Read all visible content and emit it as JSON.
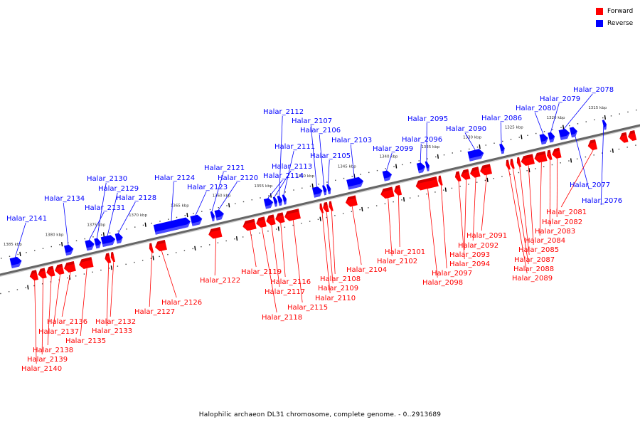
{
  "legend": {
    "items": [
      {
        "label": "Forward",
        "color": "#ff0000"
      },
      {
        "label": "Reverse",
        "color": "#0000ff"
      }
    ]
  },
  "caption": "Halophilic archaeon DL31 chromosome, complete genome. - 0..2913689",
  "colors": {
    "forward": "#ff0000",
    "forward_dark": "#b00000",
    "reverse": "#0000ff",
    "reverse_dark": "#0000a0",
    "axis": "#555555"
  },
  "ticks": [
    {
      "kbp": 1385,
      "label": "1385 kbp"
    },
    {
      "kbp": 1380,
      "label": "1380 kbp"
    },
    {
      "kbp": 1375,
      "label": "1375 kbp"
    },
    {
      "kbp": 1370,
      "label": "1370 kbp"
    },
    {
      "kbp": 1365,
      "label": "1365 kbp"
    },
    {
      "kbp": 1360,
      "label": "1360 kbp"
    },
    {
      "kbp": 1355,
      "label": "1355 kbp"
    },
    {
      "kbp": 1350,
      "label": "1350 kbp"
    },
    {
      "kbp": 1345,
      "label": "1345 kbp"
    },
    {
      "kbp": 1340,
      "label": "1340 kbp"
    },
    {
      "kbp": 1335,
      "label": "1335 kbp"
    },
    {
      "kbp": 1330,
      "label": "1330 kbp"
    },
    {
      "kbp": 1325,
      "label": "1325 kbp"
    },
    {
      "kbp": 1320,
      "label": "1320 kbp"
    },
    {
      "kbp": 1315,
      "label": "1315 kbp"
    }
  ],
  "genes": [
    {
      "name": "Halar_2141",
      "strand": "reverse",
      "start": 1385.6,
      "end": 1384.3
    },
    {
      "name": "Halar_2134",
      "strand": "reverse",
      "start": 1379.1,
      "end": 1378.1
    },
    {
      "name": "Halar_2131",
      "strand": "reverse",
      "start": 1376.6,
      "end": 1375.6
    },
    {
      "name": "Halar_2130",
      "strand": "reverse",
      "start": 1375.5,
      "end": 1374.8
    },
    {
      "name": "Halar_2129",
      "strand": "reverse",
      "start": 1374.7,
      "end": 1373.1
    },
    {
      "name": "Halar_2128",
      "strand": "reverse",
      "start": 1373.0,
      "end": 1372.2
    },
    {
      "name": "Halar_2124",
      "strand": "reverse",
      "start": 1368.4,
      "end": 1364.1
    },
    {
      "name": "Halar_2123",
      "strand": "reverse",
      "start": 1364.0,
      "end": 1362.7
    },
    {
      "name": "Halar_2121",
      "strand": "reverse",
      "start": 1361.6,
      "end": 1361.2
    },
    {
      "name": "Halar_2120",
      "strand": "reverse",
      "start": 1361.1,
      "end": 1360.1
    },
    {
      "name": "Halar_2114",
      "strand": "reverse",
      "start": 1355.2,
      "end": 1354.2
    },
    {
      "name": "Halar_2113",
      "strand": "reverse",
      "start": 1354.1,
      "end": 1353.7
    },
    {
      "name": "Halar_2112",
      "strand": "reverse",
      "start": 1353.6,
      "end": 1353.1
    },
    {
      "name": "Halar_2111",
      "strand": "reverse",
      "start": 1353.0,
      "end": 1352.6
    },
    {
      "name": "Halar_2107",
      "strand": "reverse",
      "start": 1349.4,
      "end": 1348.3
    },
    {
      "name": "Halar_2106",
      "strand": "reverse",
      "start": 1348.2,
      "end": 1347.8
    },
    {
      "name": "Halar_2105",
      "strand": "reverse",
      "start": 1347.7,
      "end": 1347.3
    },
    {
      "name": "Halar_2103",
      "strand": "reverse",
      "start": 1345.3,
      "end": 1343.4
    },
    {
      "name": "Halar_2099",
      "strand": "reverse",
      "start": 1341.0,
      "end": 1340.0
    },
    {
      "name": "Halar_2096",
      "strand": "reverse",
      "start": 1336.9,
      "end": 1336.0
    },
    {
      "name": "Halar_2095",
      "strand": "reverse",
      "start": 1335.9,
      "end": 1335.5
    },
    {
      "name": "Halar_2090",
      "strand": "reverse",
      "start": 1330.8,
      "end": 1329.0
    },
    {
      "name": "Halar_2086",
      "strand": "reverse",
      "start": 1327.0,
      "end": 1326.5
    },
    {
      "name": "Halar_2080",
      "strand": "reverse",
      "start": 1322.2,
      "end": 1321.3
    },
    {
      "name": "Halar_2079",
      "strand": "reverse",
      "start": 1321.2,
      "end": 1320.5
    },
    {
      "name": "Halar_2078",
      "strand": "reverse",
      "start": 1319.9,
      "end": 1318.7
    },
    {
      "name": "Halar_2077",
      "strand": "reverse",
      "start": 1318.6,
      "end": 1317.8
    },
    {
      "name": "Halar_2076",
      "strand": "reverse",
      "start": 1314.7,
      "end": 1314.3
    },
    {
      "name": "Halar_2140",
      "strand": "forward",
      "start": 1383.8,
      "end": 1382.9
    },
    {
      "name": "Halar_2139",
      "strand": "forward",
      "start": 1382.8,
      "end": 1381.9
    },
    {
      "name": "Halar_2138",
      "strand": "forward",
      "start": 1381.8,
      "end": 1380.9
    },
    {
      "name": "Halar_2137",
      "strand": "forward",
      "start": 1380.8,
      "end": 1379.8
    },
    {
      "name": "Halar_2136",
      "strand": "forward",
      "start": 1379.7,
      "end": 1378.4
    },
    {
      "name": "Halar_2135",
      "strand": "forward",
      "start": 1377.9,
      "end": 1376.3
    },
    {
      "name": "Halar_2133",
      "strand": "forward",
      "start": 1374.8,
      "end": 1374.2
    },
    {
      "name": "Halar_2132",
      "strand": "forward",
      "start": 1374.1,
      "end": 1373.7
    },
    {
      "name": "Halar_2127",
      "strand": "forward",
      "start": 1369.5,
      "end": 1369.1
    },
    {
      "name": "Halar_2126",
      "strand": "forward",
      "start": 1368.8,
      "end": 1367.5
    },
    {
      "name": "Halar_2122",
      "strand": "forward",
      "start": 1362.4,
      "end": 1360.9
    },
    {
      "name": "Halar_2119",
      "strand": "forward",
      "start": 1358.3,
      "end": 1356.8
    },
    {
      "name": "Halar_2118",
      "strand": "forward",
      "start": 1356.7,
      "end": 1355.6
    },
    {
      "name": "Halar_2117",
      "strand": "forward",
      "start": 1355.5,
      "end": 1354.5
    },
    {
      "name": "Halar_2116",
      "strand": "forward",
      "start": 1354.4,
      "end": 1353.4
    },
    {
      "name": "Halar_2115",
      "strand": "forward",
      "start": 1353.3,
      "end": 1351.5
    },
    {
      "name": "Halar_2110",
      "strand": "forward",
      "start": 1349.1,
      "end": 1348.8
    },
    {
      "name": "Halar_2109",
      "strand": "forward",
      "start": 1348.7,
      "end": 1348.1
    },
    {
      "name": "Halar_2108",
      "strand": "forward",
      "start": 1348.0,
      "end": 1347.6
    },
    {
      "name": "Halar_2104",
      "strand": "forward",
      "start": 1346.0,
      "end": 1344.7
    },
    {
      "name": "Halar_2102",
      "strand": "forward",
      "start": 1341.8,
      "end": 1340.3
    },
    {
      "name": "Halar_2101",
      "strand": "forward",
      "start": 1340.2,
      "end": 1339.4
    },
    {
      "name": "Halar_2098",
      "strand": "forward",
      "start": 1337.6,
      "end": 1335.0
    },
    {
      "name": "Halar_2097",
      "strand": "forward",
      "start": 1334.9,
      "end": 1334.5
    },
    {
      "name": "Halar_2094",
      "strand": "forward",
      "start": 1332.9,
      "end": 1332.3
    },
    {
      "name": "Halar_2093",
      "strand": "forward",
      "start": 1332.2,
      "end": 1331.2
    },
    {
      "name": "Halar_2092",
      "strand": "forward",
      "start": 1331.1,
      "end": 1330.0
    },
    {
      "name": "Halar_2091",
      "strand": "forward",
      "start": 1329.9,
      "end": 1328.6
    },
    {
      "name": "Halar_2089",
      "strand": "forward",
      "start": 1326.8,
      "end": 1326.4
    },
    {
      "name": "Halar_2088",
      "strand": "forward",
      "start": 1326.3,
      "end": 1325.9
    },
    {
      "name": "Halar_2087",
      "strand": "forward",
      "start": 1325.5,
      "end": 1325.1
    },
    {
      "name": "Halar_2085",
      "strand": "forward",
      "start": 1325.0,
      "end": 1323.5
    },
    {
      "name": "Halar_2084",
      "strand": "forward",
      "start": 1323.4,
      "end": 1322.0
    },
    {
      "name": "Halar_2083",
      "strand": "forward",
      "start": 1321.9,
      "end": 1321.4
    },
    {
      "name": "Halar_2082",
      "strand": "forward",
      "start": 1321.3,
      "end": 1320.3
    },
    {
      "name": "Halar_2081",
      "strand": "forward",
      "start": 1317.0,
      "end": 1316.0
    },
    {
      "name": "Halar_2075",
      "strand": "forward",
      "start": 1313.2,
      "end": 1312.3
    },
    {
      "name": "Halar_2074",
      "strand": "forward",
      "start": 1312.2,
      "end": 1311.3
    }
  ],
  "labeled_genes": {
    "reverse": [
      "Halar_2141",
      "Halar_2134",
      "Halar_2131",
      "Halar_2130",
      "Halar_2129",
      "Halar_2128",
      "Halar_2124",
      "Halar_2123",
      "Halar_2121",
      "Halar_2120",
      "Halar_2114",
      "Halar_2113",
      "Halar_2112",
      "Halar_2111",
      "Halar_2107",
      "Halar_2106",
      "Halar_2105",
      "Halar_2103",
      "Halar_2099",
      "Halar_2096",
      "Halar_2095",
      "Halar_2090",
      "Halar_2086",
      "Halar_2080",
      "Halar_2079",
      "Halar_2078",
      "Halar_2077",
      "Halar_2076"
    ],
    "forward": [
      "Halar_2140",
      "Halar_2139",
      "Halar_2138",
      "Halar_2137",
      "Halar_2136",
      "Halar_2135",
      "Halar_2133",
      "Halar_2132",
      "Halar_2127",
      "Halar_2126",
      "Halar_2122",
      "Halar_2119",
      "Halar_2118",
      "Halar_2117",
      "Halar_2116",
      "Halar_2115",
      "Halar_2110",
      "Halar_2109",
      "Halar_2108",
      "Halar_2104",
      "Halar_2102",
      "Halar_2101",
      "Halar_2098",
      "Halar_2097",
      "Halar_2094",
      "Halar_2093",
      "Halar_2092",
      "Halar_2091",
      "Halar_2089",
      "Halar_2088",
      "Halar_2087",
      "Halar_2085",
      "Halar_2084",
      "Halar_2083",
      "Halar_2082",
      "Halar_2081"
    ]
  }
}
